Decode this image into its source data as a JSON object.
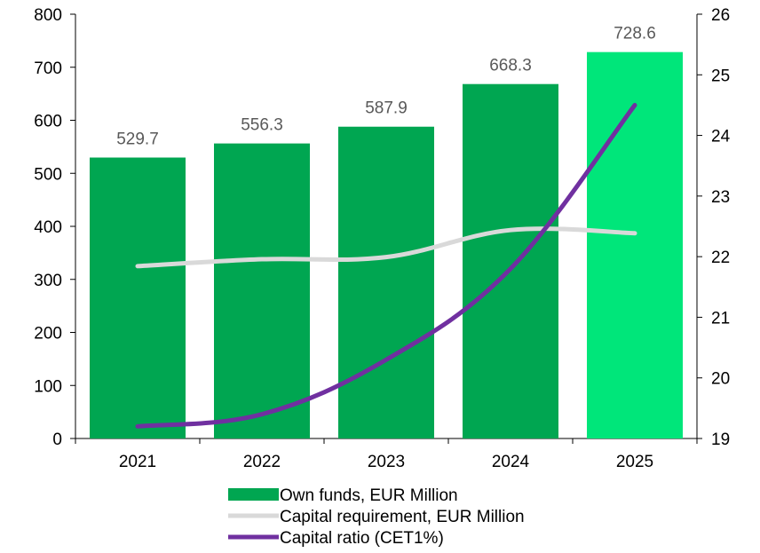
{
  "chart_data": {
    "type": "bar",
    "categories": [
      "2021",
      "2022",
      "2023",
      "2024",
      "2025"
    ],
    "series": [
      {
        "name": "Own funds, EUR Million",
        "kind": "bar",
        "axis": "left",
        "values": [
          529.7,
          556.3,
          587.9,
          668.3,
          728.6
        ],
        "data_labels": [
          "529.7",
          "556.3",
          "587.9",
          "668.3",
          "728.6"
        ],
        "colors": [
          "#00A651",
          "#00A651",
          "#00A651",
          "#00A651",
          "#00E67A"
        ]
      },
      {
        "name": "Capital requirement, EUR Million",
        "kind": "line",
        "axis": "left",
        "values": [
          325,
          338,
          342,
          393,
          387
        ],
        "color": "#D9D9D9"
      },
      {
        "name": "Capital ratio (CET1%)",
        "kind": "line",
        "axis": "right",
        "values": [
          19.2,
          19.4,
          20.3,
          21.8,
          24.5
        ],
        "color": "#7030A0"
      }
    ],
    "y_left": {
      "lim": [
        0,
        800
      ],
      "ticks": [
        "0",
        "100",
        "200",
        "300",
        "400",
        "500",
        "600",
        "700",
        "800"
      ]
    },
    "y_right": {
      "lim": [
        19,
        26
      ],
      "ticks": [
        "19",
        "20",
        "21",
        "22",
        "23",
        "24",
        "25",
        "26"
      ]
    },
    "grid": false,
    "legend_position": "bottom"
  }
}
